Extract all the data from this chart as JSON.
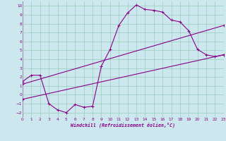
{
  "xlabel": "Windchill (Refroidissement éolien,°C)",
  "bg_color": "#cce8ee",
  "line_color": "#880088",
  "grid_color": "#99ccbb",
  "xlim": [
    0,
    23
  ],
  "ylim": [
    -2.5,
    10.5
  ],
  "xticks": [
    0,
    1,
    2,
    3,
    4,
    5,
    6,
    7,
    8,
    9,
    10,
    11,
    12,
    13,
    14,
    15,
    16,
    17,
    18,
    19,
    20,
    21,
    22,
    23
  ],
  "yticks": [
    -2,
    -1,
    0,
    1,
    2,
    3,
    4,
    5,
    6,
    7,
    8,
    9,
    10
  ],
  "curve1_x": [
    0,
    1,
    2,
    3,
    4,
    5,
    6,
    7,
    8,
    9,
    10,
    11,
    12,
    13,
    14,
    15,
    16,
    17,
    18,
    19,
    20,
    21,
    22,
    23
  ],
  "curve1_y": [
    1.5,
    2.2,
    2.2,
    -1.0,
    -1.7,
    -2.0,
    -1.1,
    -1.4,
    -1.3,
    3.2,
    5.1,
    7.8,
    9.2,
    10.1,
    9.6,
    9.5,
    9.3,
    8.4,
    8.2,
    7.2,
    5.1,
    4.5,
    4.3,
    4.5
  ],
  "line1_x": [
    0,
    23
  ],
  "line1_y": [
    1.2,
    7.8
  ],
  "line2_x": [
    0,
    23
  ],
  "line2_y": [
    -0.5,
    4.5
  ]
}
